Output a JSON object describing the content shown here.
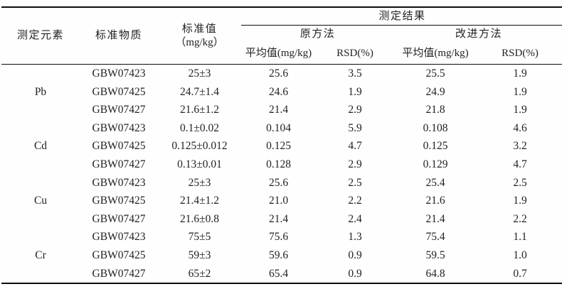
{
  "page": {
    "background": "#fefefe",
    "text_color": "#222222",
    "rule_color": "#0d0d0d"
  },
  "table": {
    "header": {
      "element": "测定元素",
      "material": "标准物质",
      "standard_value_line1": "标准值",
      "standard_value_line2": "（mg/kg）",
      "results_group": "测定结果",
      "method_original": "原方法",
      "method_improved": "改进方法",
      "mean_label_original": "平均值(mg/kg)",
      "rsd_label_original": "RSD(%)",
      "mean_label_improved": "平均值(mg/kg)",
      "rsd_label_improved": "RSD(%)"
    },
    "groups": [
      {
        "element": "Pb",
        "rows": [
          {
            "material": "GBW07423",
            "standard": "25±3",
            "orig_mean": "25.6",
            "orig_rsd": "3.5",
            "impr_mean": "25.5",
            "impr_rsd": "1.9"
          },
          {
            "material": "GBW07425",
            "standard": "24.7±1.4",
            "orig_mean": "24.6",
            "orig_rsd": "1.9",
            "impr_mean": "24.9",
            "impr_rsd": "1.9"
          },
          {
            "material": "GBW07427",
            "standard": "21.6±1.2",
            "orig_mean": "21.4",
            "orig_rsd": "2.9",
            "impr_mean": "21.8",
            "impr_rsd": "1.9"
          }
        ]
      },
      {
        "element": "Cd",
        "rows": [
          {
            "material": "GBW07423",
            "standard": "0.1±0.02",
            "orig_mean": "0.104",
            "orig_rsd": "5.9",
            "impr_mean": "0.108",
            "impr_rsd": "4.6"
          },
          {
            "material": "GBW07425",
            "standard": "0.125±0.012",
            "orig_mean": "0.125",
            "orig_rsd": "4.7",
            "impr_mean": "0.125",
            "impr_rsd": "3.2"
          },
          {
            "material": "GBW07427",
            "standard": "0.13±0.01",
            "orig_mean": "0.128",
            "orig_rsd": "2.9",
            "impr_mean": "0.129",
            "impr_rsd": "4.7"
          }
        ]
      },
      {
        "element": "Cu",
        "rows": [
          {
            "material": "GBW07423",
            "standard": "25±3",
            "orig_mean": "25.6",
            "orig_rsd": "2.5",
            "impr_mean": "25.4",
            "impr_rsd": "2.5"
          },
          {
            "material": "GBW07425",
            "standard": "21.4±1.2",
            "orig_mean": "21.0",
            "orig_rsd": "2.2",
            "impr_mean": "21.6",
            "impr_rsd": "1.9"
          },
          {
            "material": "GBW07427",
            "standard": "21.6±0.8",
            "orig_mean": "21.4",
            "orig_rsd": "2.4",
            "impr_mean": "21.4",
            "impr_rsd": "2.2"
          }
        ]
      },
      {
        "element": "Cr",
        "rows": [
          {
            "material": "GBW07423",
            "standard": "75±5",
            "orig_mean": "75.6",
            "orig_rsd": "1.3",
            "impr_mean": "75.4",
            "impr_rsd": "1.1"
          },
          {
            "material": "GBW07425",
            "standard": "59±3",
            "orig_mean": "59.6",
            "orig_rsd": "0.9",
            "impr_mean": "59.5",
            "impr_rsd": "1.0"
          },
          {
            "material": "GBW07427",
            "standard": "65±2",
            "orig_mean": "65.4",
            "orig_rsd": "0.9",
            "impr_mean": "64.8",
            "impr_rsd": "0.7"
          }
        ]
      }
    ]
  }
}
